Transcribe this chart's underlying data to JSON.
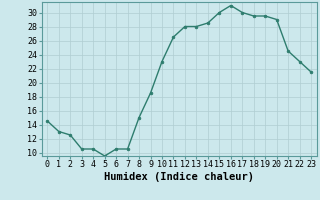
{
  "x": [
    0,
    1,
    2,
    3,
    4,
    5,
    6,
    7,
    8,
    9,
    10,
    11,
    12,
    13,
    14,
    15,
    16,
    17,
    18,
    19,
    20,
    21,
    22,
    23
  ],
  "y": [
    14.5,
    13,
    12.5,
    10.5,
    10.5,
    9.5,
    10.5,
    10.5,
    15,
    18.5,
    23,
    26.5,
    28,
    28,
    28.5,
    30,
    31,
    30,
    29.5,
    29.5,
    29,
    24.5,
    23,
    21.5
  ],
  "line_color": "#2e7d6e",
  "bg_color": "#cce8ec",
  "grid_color": "#b0ced2",
  "xlabel": "Humidex (Indice chaleur)",
  "ylim": [
    9.5,
    31.5
  ],
  "xlim": [
    -0.5,
    23.5
  ],
  "yticks": [
    10,
    12,
    14,
    16,
    18,
    20,
    22,
    24,
    26,
    28,
    30
  ],
  "xticks": [
    0,
    1,
    2,
    3,
    4,
    5,
    6,
    7,
    8,
    9,
    10,
    11,
    12,
    13,
    14,
    15,
    16,
    17,
    18,
    19,
    20,
    21,
    22,
    23
  ],
  "xtick_labels": [
    "0",
    "1",
    "2",
    "3",
    "4",
    "5",
    "6",
    "7",
    "8",
    "9",
    "10",
    "11",
    "12",
    "13",
    "14",
    "15",
    "16",
    "17",
    "18",
    "19",
    "20",
    "21",
    "22",
    "23"
  ],
  "marker": "o",
  "markersize": 2.0,
  "linewidth": 1.0,
  "xlabel_fontsize": 7.5,
  "tick_fontsize": 6.0
}
